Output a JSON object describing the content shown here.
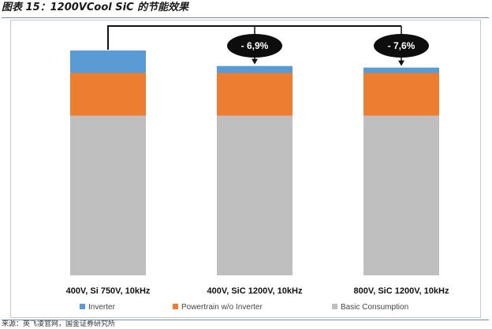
{
  "figure": {
    "title": "图表 15：1200VCool SiC 的节能效果",
    "source": "来源：英飞凌官网，国金证券研究所"
  },
  "chart_data": {
    "type": "bar",
    "stacked": true,
    "categories": [
      "400V, Si 750V, 10kHz",
      "400V, SiC 1200V, 10kHz",
      "800V, SiC 1200V, 10kHz"
    ],
    "series": [
      {
        "name": "Basic Consumption",
        "color": "#bfbfbf",
        "values": [
          71,
          71,
          71
        ]
      },
      {
        "name": "Powertrain w/o Inverter",
        "color": "#ed7d31",
        "values": [
          19,
          19,
          19
        ]
      },
      {
        "name": "Inverter",
        "color": "#5b9bd5",
        "values": [
          10,
          3.1,
          2.4
        ]
      }
    ],
    "ylim": [
      0,
      100
    ],
    "legend_order": [
      "Inverter",
      "Powertrain w/o Inverter",
      "Basic Consumption"
    ],
    "legend_position": "bottom",
    "grid": false,
    "annotations": [
      {
        "from": 0,
        "to": 1,
        "label": "- 6,9%"
      },
      {
        "from": 0,
        "to": 2,
        "label": "- 7,6%"
      }
    ]
  }
}
